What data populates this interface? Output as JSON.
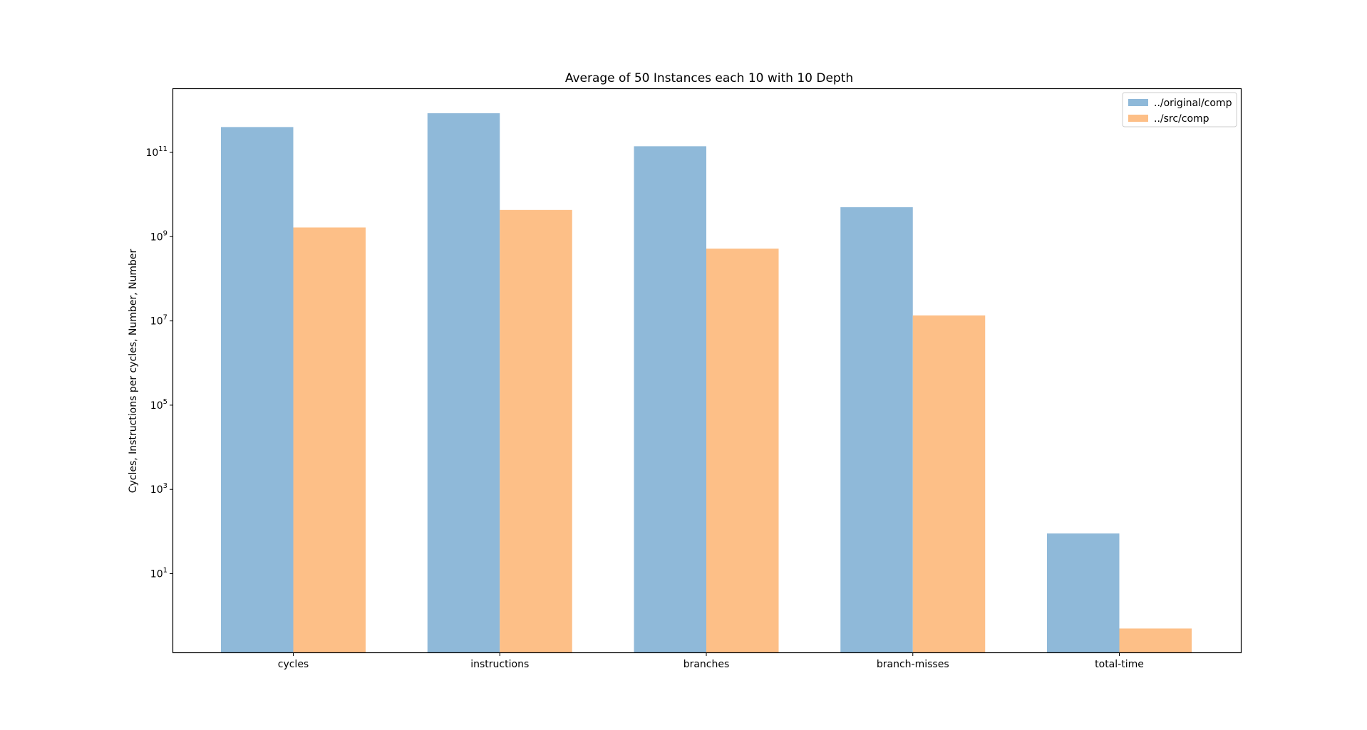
{
  "chart_data": {
    "type": "bar",
    "title": "Average of 50 Instances each 10 with 10 Depth",
    "xlabel": "",
    "ylabel": "Cycles, Instructions per cycles, Number, Number",
    "yscale": "log",
    "ylim": [
      0.1,
      2000000000000
    ],
    "categories": [
      "cycles",
      "instructions",
      "branches",
      "branch-misses",
      "total-time"
    ],
    "series": [
      {
        "name": "../original/comp",
        "color": "#8fb9d9",
        "values": [
          400000000000,
          850000000000,
          140000000000,
          5000000000,
          90
        ]
      },
      {
        "name": "../src/comp",
        "color": "#fdbf87",
        "values": [
          1650000000,
          4300000000,
          520000000,
          13500000,
          0.5
        ]
      }
    ],
    "yticks": [
      {
        "base": "10",
        "exp": "1",
        "value": 10
      },
      {
        "base": "10",
        "exp": "3",
        "value": 1000
      },
      {
        "base": "10",
        "exp": "5",
        "value": 100000
      },
      {
        "base": "10",
        "exp": "7",
        "value": 10000000
      },
      {
        "base": "10",
        "exp": "9",
        "value": 1000000000
      },
      {
        "base": "10",
        "exp": "11",
        "value": 100000000000
      }
    ],
    "grid": false,
    "legend_position": "top-right"
  }
}
